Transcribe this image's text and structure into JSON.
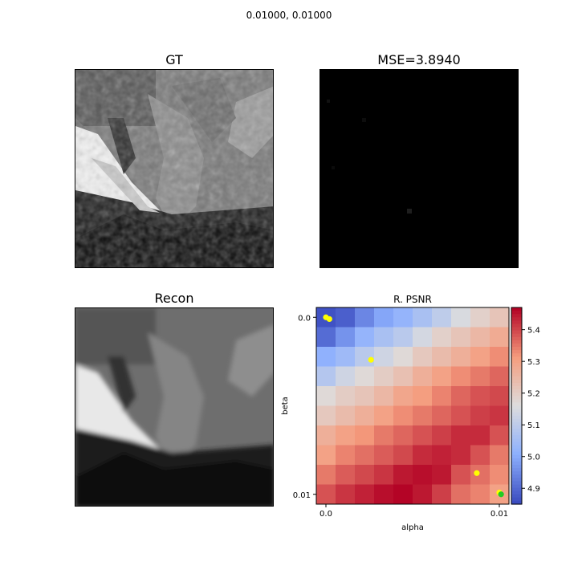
{
  "figure": {
    "suptitle": "0.01000, 0.01000"
  },
  "panels": {
    "gt": {
      "title": "GT"
    },
    "mse": {
      "title": "MSE=3.8940"
    },
    "recon": {
      "title": "Recon"
    }
  },
  "chart_data": {
    "type": "heatmap",
    "title": "R. PSNR",
    "xlabel": "alpha",
    "ylabel": "beta",
    "x_ticks": [
      "0.0",
      "0.01"
    ],
    "y_ticks": [
      "0.0",
      "0.01"
    ],
    "x_range": [
      0.0,
      0.01
    ],
    "y_range": [
      0.0,
      0.01
    ],
    "rows": 10,
    "cols": 10,
    "colormap": "coolwarm",
    "colorbar": {
      "min": 4.85,
      "max": 5.47,
      "ticks": [
        "4.9",
        "5.0",
        "5.1",
        "5.2",
        "5.3",
        "5.4"
      ]
    },
    "values": [
      [
        4.86,
        4.88,
        4.94,
        4.99,
        5.02,
        5.06,
        5.1,
        5.15,
        5.19,
        5.22
      ],
      [
        4.9,
        4.96,
        5.02,
        5.06,
        5.09,
        5.14,
        5.19,
        5.22,
        5.25,
        5.28
      ],
      [
        5.01,
        5.04,
        5.09,
        5.13,
        5.17,
        5.21,
        5.24,
        5.27,
        5.3,
        5.33
      ],
      [
        5.08,
        5.13,
        5.17,
        5.2,
        5.23,
        5.27,
        5.3,
        5.33,
        5.35,
        5.37
      ],
      [
        5.17,
        5.2,
        5.22,
        5.25,
        5.29,
        5.31,
        5.34,
        5.37,
        5.39,
        5.4
      ],
      [
        5.21,
        5.24,
        5.27,
        5.3,
        5.33,
        5.35,
        5.37,
        5.39,
        5.41,
        5.42
      ],
      [
        5.27,
        5.3,
        5.32,
        5.35,
        5.37,
        5.39,
        5.41,
        5.43,
        5.43,
        5.39
      ],
      [
        5.3,
        5.34,
        5.36,
        5.38,
        5.4,
        5.43,
        5.44,
        5.43,
        5.39,
        5.35
      ],
      [
        5.35,
        5.38,
        5.4,
        5.42,
        5.45,
        5.46,
        5.45,
        5.39,
        5.36,
        5.33
      ],
      [
        5.39,
        5.42,
        5.44,
        5.46,
        5.47,
        5.45,
        5.41,
        5.36,
        5.34,
        5.3
      ]
    ],
    "markers": [
      {
        "alpha": 0.0,
        "beta": 0.0,
        "color": "#ffff00"
      },
      {
        "alpha": 0.0002,
        "beta": 0.0001,
        "color": "#ffff00"
      },
      {
        "alpha": 0.0026,
        "beta": 0.0024,
        "color": "#ffff00"
      },
      {
        "alpha": 0.0087,
        "beta": 0.0088,
        "color": "#ffff00"
      },
      {
        "alpha": 0.01,
        "beta": 0.0099,
        "color": "#ffff00"
      },
      {
        "alpha": 0.0101,
        "beta": 0.01,
        "color": "#22cc22"
      }
    ]
  }
}
